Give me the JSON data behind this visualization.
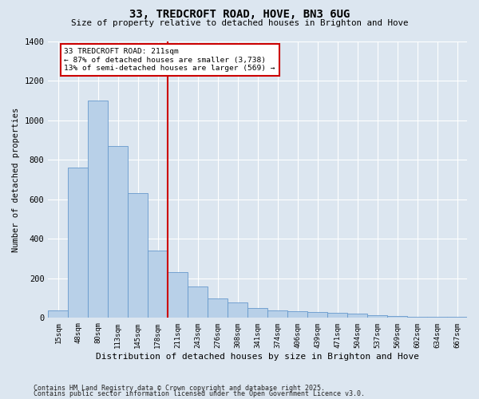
{
  "title1": "33, TREDCROFT ROAD, HOVE, BN3 6UG",
  "title2": "Size of property relative to detached houses in Brighton and Hove",
  "xlabel": "Distribution of detached houses by size in Brighton and Hove",
  "ylabel": "Number of detached properties",
  "categories": [
    "15sqm",
    "48sqm",
    "80sqm",
    "113sqm",
    "145sqm",
    "178sqm",
    "211sqm",
    "243sqm",
    "276sqm",
    "308sqm",
    "341sqm",
    "374sqm",
    "406sqm",
    "439sqm",
    "471sqm",
    "504sqm",
    "537sqm",
    "569sqm",
    "602sqm",
    "634sqm",
    "667sqm"
  ],
  "values": [
    40,
    760,
    1100,
    870,
    630,
    340,
    230,
    160,
    100,
    80,
    50,
    40,
    35,
    30,
    25,
    20,
    12,
    8,
    5,
    5,
    5
  ],
  "bar_color": "#b8d0e8",
  "bar_edge_color": "#6699cc",
  "red_line_index": 6,
  "annotation_text_line1": "33 TREDCROFT ROAD: 211sqm",
  "annotation_text_line2": "← 87% of detached houses are smaller (3,738)",
  "annotation_text_line3": "13% of semi-detached houses are larger (569) →",
  "annotation_box_color": "#ffffff",
  "annotation_box_edge": "#cc0000",
  "red_line_color": "#cc0000",
  "background_color": "#dce6f0",
  "plot_background": "#dce6f0",
  "footer1": "Contains HM Land Registry data © Crown copyright and database right 2025.",
  "footer2": "Contains public sector information licensed under the Open Government Licence v3.0.",
  "ylim": [
    0,
    1400
  ],
  "yticks": [
    0,
    200,
    400,
    600,
    800,
    1000,
    1200,
    1400
  ]
}
